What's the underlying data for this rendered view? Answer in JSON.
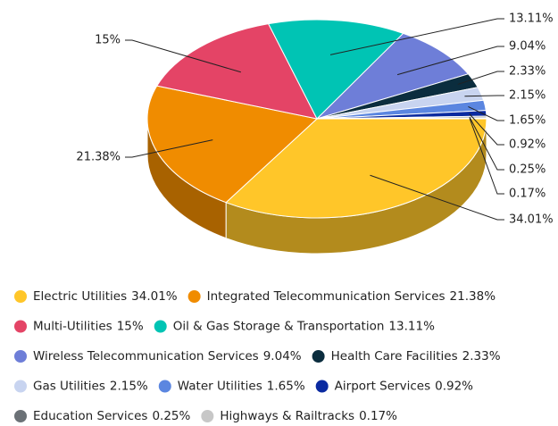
{
  "chart_data": {
    "type": "pie",
    "categories": [
      "Electric Utilities",
      "Integrated Telecommunication Services",
      "Multi-Utilities",
      "Oil & Gas Storage & Transportation",
      "Wireless Telecommunication Services",
      "Health Care Facilities",
      "Gas Utilities",
      "Water Utilities",
      "Airport Services",
      "Education Services",
      "Highways & Railtracks"
    ],
    "values": [
      34.01,
      21.38,
      15,
      13.11,
      9.04,
      2.33,
      2.15,
      1.65,
      0.92,
      0.25,
      0.17
    ],
    "value_labels": [
      "34.01%",
      "21.38%",
      "15%",
      "13.11%",
      "9.04%",
      "2.33%",
      "2.15%",
      "1.65%",
      "0.92%",
      "0.25%",
      "0.17%"
    ],
    "colors": [
      "#ffc629",
      "#f08c00",
      "#e44466",
      "#00c4b4",
      "#6e7ed8",
      "#0b2d3e",
      "#c8d4f0",
      "#5b86e0",
      "#0a2aa0",
      "#6b7176",
      "#c7c7c7"
    ],
    "legend": true
  }
}
